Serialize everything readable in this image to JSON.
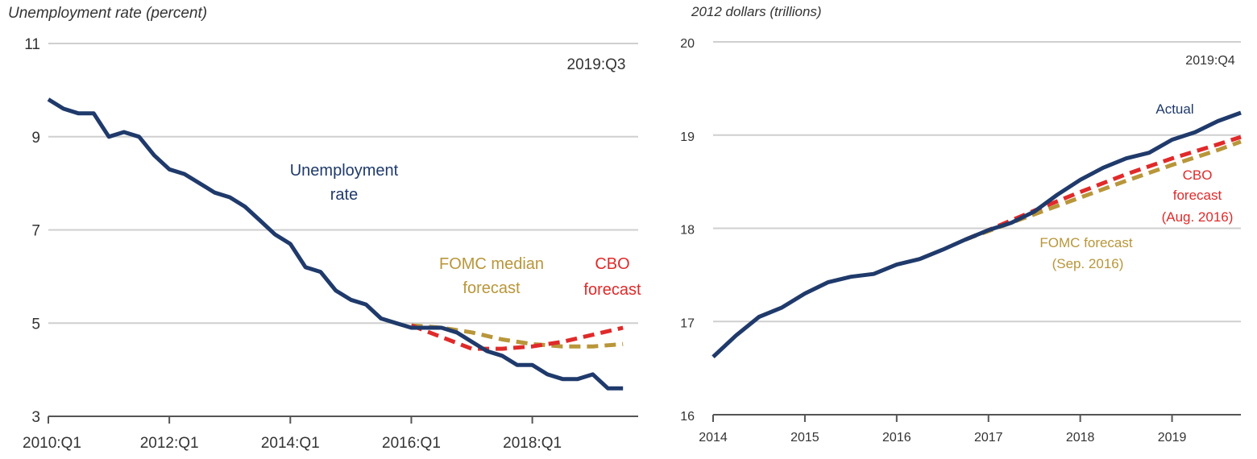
{
  "chart_data": [
    {
      "type": "line",
      "ylabel": "Unemployment rate (percent)",
      "xlabel": "",
      "ylim": [
        3,
        11
      ],
      "yticks": [
        "11",
        "9",
        "7",
        "5",
        "3"
      ],
      "xticks": [
        "2010:Q1",
        "2012:Q1",
        "2014:Q1",
        "2016:Q1",
        "2018:Q1"
      ],
      "xrange": [
        2010.0,
        2019.75
      ],
      "grid": true,
      "date_note": "2019:Q3",
      "series": [
        {
          "name": "Unemployment rate",
          "label_lines": [
            "Unemployment",
            "rate"
          ],
          "color": "#1f3a6b",
          "style": "solid",
          "x": [
            2010.0,
            2010.25,
            2010.5,
            2010.75,
            2011.0,
            2011.25,
            2011.5,
            2011.75,
            2012.0,
            2012.25,
            2012.5,
            2012.75,
            2013.0,
            2013.25,
            2013.5,
            2013.75,
            2014.0,
            2014.25,
            2014.5,
            2014.75,
            2015.0,
            2015.25,
            2015.5,
            2015.75,
            2016.0,
            2016.25,
            2016.5,
            2016.75,
            2017.0,
            2017.25,
            2017.5,
            2017.75,
            2018.0,
            2018.25,
            2018.5,
            2018.75,
            2019.0,
            2019.25,
            2019.5
          ],
          "y": [
            9.8,
            9.6,
            9.5,
            9.5,
            9.0,
            9.1,
            9.0,
            8.6,
            8.3,
            8.2,
            8.0,
            7.8,
            7.7,
            7.5,
            7.2,
            6.9,
            6.7,
            6.2,
            6.1,
            5.7,
            5.5,
            5.4,
            5.1,
            5.0,
            4.9,
            4.9,
            4.9,
            4.8,
            4.6,
            4.4,
            4.3,
            4.1,
            4.1,
            3.9,
            3.8,
            3.8,
            3.9,
            3.6,
            3.6
          ]
        },
        {
          "name": "FOMC median forecast",
          "label_lines": [
            "FOMC median",
            "forecast"
          ],
          "color": "#b8963a",
          "style": "dashed",
          "x": [
            2016.0,
            2016.5,
            2017.0,
            2017.5,
            2018.0,
            2018.5,
            2019.0,
            2019.5
          ],
          "y": [
            4.95,
            4.9,
            4.8,
            4.65,
            4.55,
            4.5,
            4.5,
            4.55
          ]
        },
        {
          "name": "CBO forecast",
          "label_lines": [
            "CBO",
            "forecast"
          ],
          "color": "#e02a2a",
          "style": "dashed",
          "x": [
            2016.0,
            2016.5,
            2017.0,
            2017.5,
            2018.0,
            2018.5,
            2019.0,
            2019.5
          ],
          "y": [
            4.95,
            4.7,
            4.45,
            4.45,
            4.5,
            4.6,
            4.75,
            4.9
          ]
        }
      ]
    },
    {
      "type": "line",
      "ylabel": "2012 dollars (trillions)",
      "xlabel": "",
      "ylim": [
        16,
        20
      ],
      "yticks": [
        "20",
        "19",
        "18",
        "17",
        "16"
      ],
      "xticks": [
        "2014",
        "2015",
        "2016",
        "2017",
        "2018",
        "2019"
      ],
      "xrange": [
        2014.0,
        2019.75
      ],
      "grid": true,
      "date_note": "2019:Q4",
      "series": [
        {
          "name": "Actual",
          "label_lines": [
            "Actual"
          ],
          "color": "#1f3a6b",
          "style": "solid",
          "x": [
            2014.0,
            2014.25,
            2014.5,
            2014.75,
            2015.0,
            2015.25,
            2015.5,
            2015.75,
            2016.0,
            2016.25,
            2016.5,
            2016.75,
            2017.0,
            2017.25,
            2017.5,
            2017.75,
            2018.0,
            2018.25,
            2018.5,
            2018.75,
            2019.0,
            2019.25,
            2019.5,
            2019.75
          ],
          "y": [
            16.62,
            16.85,
            17.05,
            17.15,
            17.3,
            17.42,
            17.48,
            17.51,
            17.61,
            17.67,
            17.77,
            17.88,
            17.98,
            18.06,
            18.18,
            18.36,
            18.52,
            18.65,
            18.75,
            18.81,
            18.95,
            19.03,
            19.15,
            19.24
          ]
        },
        {
          "name": "CBO forecast (Aug. 2016)",
          "label_lines": [
            "CBO",
            "forecast",
            "(Aug. 2016)"
          ],
          "color": "#e02a2a",
          "style": "dashed",
          "x": [
            2016.75,
            2017.0,
            2017.5,
            2018.0,
            2018.5,
            2019.0,
            2019.5,
            2019.75
          ],
          "y": [
            17.88,
            17.98,
            18.19,
            18.39,
            18.58,
            18.75,
            18.9,
            18.98
          ]
        },
        {
          "name": "FOMC forecast (Sep. 2016)",
          "label_lines": [
            "FOMC forecast",
            "(Sep. 2016)"
          ],
          "color": "#b8963a",
          "style": "dashed",
          "x": [
            2016.75,
            2017.0,
            2017.5,
            2018.0,
            2018.5,
            2019.0,
            2019.5,
            2019.75
          ],
          "y": [
            17.88,
            17.97,
            18.15,
            18.33,
            18.51,
            18.68,
            18.84,
            18.93
          ]
        }
      ]
    }
  ]
}
